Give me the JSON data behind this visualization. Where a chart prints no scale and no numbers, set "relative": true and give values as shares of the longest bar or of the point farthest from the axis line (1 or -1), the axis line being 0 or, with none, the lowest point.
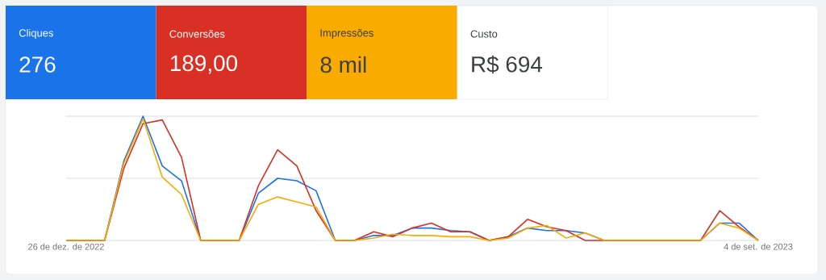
{
  "chart_data": [
    {
      "type": "other",
      "annotations": [
        "Cliques",
        "276",
        "Conversões",
        "189,00",
        "Impressões",
        "8 mil",
        "Custo",
        "R$ 694"
      ]
    },
    {
      "type": "line",
      "relative": true,
      "categories": [
        "26 de dez. de 2022",
        null,
        null,
        null,
        null,
        null,
        null,
        null,
        null,
        null,
        null,
        null,
        null,
        null,
        null,
        null,
        null,
        null,
        null,
        null,
        null,
        null,
        null,
        null,
        null,
        null,
        null,
        null,
        null,
        null,
        null,
        null,
        null,
        null,
        null,
        null,
        "4 de set. de 2023"
      ],
      "series": [
        {
          "color": "#1a73e8",
          "values": [
            0,
            0,
            0,
            0.64,
            1,
            0.6,
            0.48,
            0,
            0,
            0,
            0.38,
            0.5,
            0.48,
            0.4,
            0,
            0,
            0.04,
            0.04,
            0.1,
            0.1,
            0.08,
            0.07,
            0,
            0.03,
            0.1,
            0.08,
            0.08,
            0.06,
            0,
            0,
            0,
            0,
            0,
            0,
            0.14,
            0.14,
            0
          ]
        },
        {
          "color": "#d93025",
          "values": [
            0,
            0,
            0,
            0.58,
            0.94,
            0.97,
            0.67,
            0,
            0,
            0,
            0.44,
            0.73,
            0.6,
            0.24,
            0,
            0,
            0.07,
            0.03,
            0.1,
            0.14,
            0.07,
            0.07,
            0,
            0.03,
            0.17,
            0.11,
            0.08,
            0,
            0,
            0,
            0,
            0,
            0,
            0,
            0.24,
            0.11,
            0
          ]
        },
        {
          "color": "#f9ab00",
          "values": [
            0,
            0,
            0,
            0.62,
            0.98,
            0.51,
            0.37,
            0,
            0,
            0,
            0.29,
            0.35,
            0.31,
            0.27,
            0,
            0,
            0.02,
            0.05,
            0.04,
            0.04,
            0.03,
            0.03,
            0,
            0.02,
            0.1,
            0.12,
            0.02,
            0.06,
            0,
            0,
            0,
            0,
            0,
            0,
            0.14,
            0.1,
            0
          ]
        }
      ],
      "ref_lines": [
        {
          "axis": "y",
          "value": 0.5,
          "color": "#dadce0"
        },
        {
          "axis": "y",
          "value": 1,
          "color": "#dadce0"
        }
      ]
    }
  ]
}
